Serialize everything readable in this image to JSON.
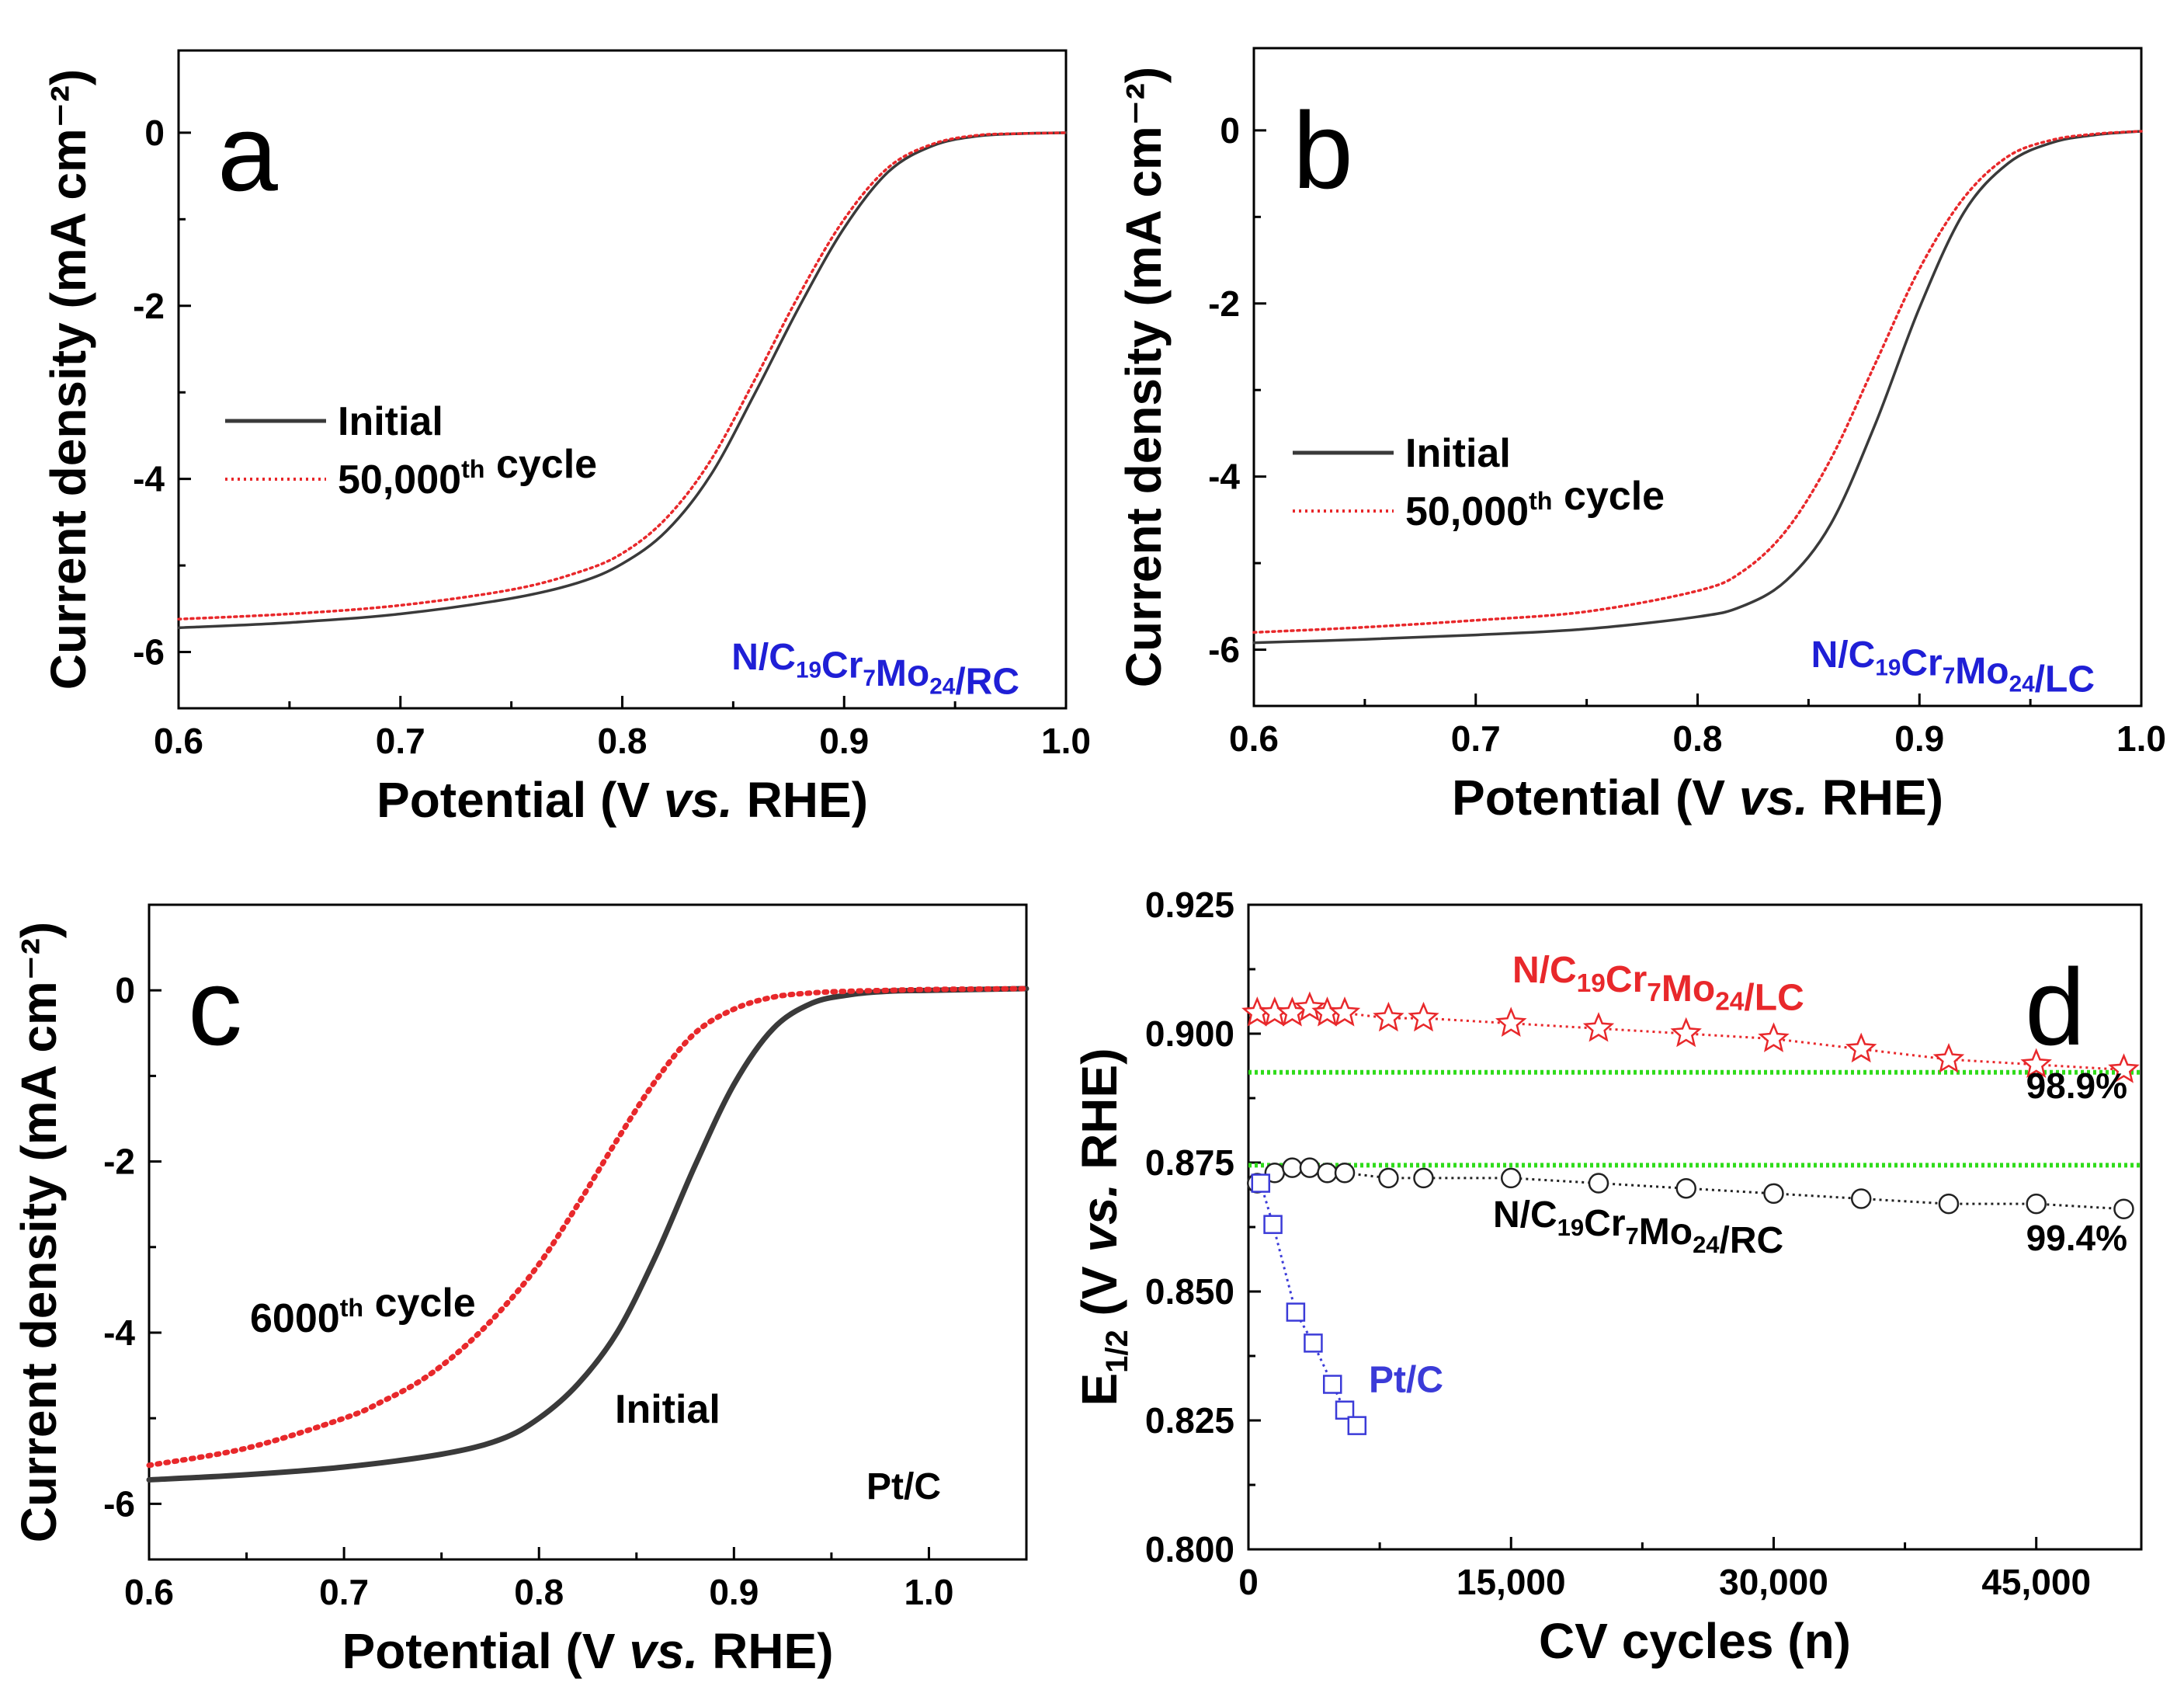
{
  "colors": {
    "initial": "#3a3a3a",
    "cycled": "#e8282b",
    "sample_label": "#1f1fd6",
    "lc_series": "#e8282b",
    "rc_series": "#222222",
    "ptc_series": "#3b3bd8",
    "reference": "#2fdc1a"
  },
  "chart_data": [
    {
      "panel": "a",
      "type": "line",
      "panel_letter": "a",
      "xlabel": "Potential (V vs. RHE)",
      "ylabel": "Current density (mA cm⁻²)",
      "xlim": [
        0.6,
        1.0
      ],
      "ylim": [
        -6.65,
        0.95
      ],
      "xticks": [
        0.6,
        0.7,
        0.8,
        0.9,
        1.0
      ],
      "xtick_labels": [
        "0.6",
        "0.7",
        "0.8",
        "0.9",
        "1.0"
      ],
      "yticks": [
        0,
        -2,
        -4,
        -6
      ],
      "ytick_labels": [
        "0",
        "-2",
        "-4",
        "-6"
      ],
      "sample_label": "N/C19Cr7Mo24/RC",
      "legend": [
        "Initial",
        "50,000th cycle"
      ],
      "series": [
        {
          "name": "Initial",
          "style": "solid",
          "x": [
            0.6,
            0.65,
            0.7,
            0.75,
            0.78,
            0.8,
            0.82,
            0.84,
            0.86,
            0.88,
            0.9,
            0.92,
            0.94,
            0.96,
            0.98,
            1.0
          ],
          "y": [
            -5.72,
            -5.66,
            -5.56,
            -5.38,
            -5.2,
            -4.98,
            -4.6,
            -3.95,
            -3.0,
            -2.0,
            -1.1,
            -0.45,
            -0.15,
            -0.04,
            -0.01,
            0.0
          ]
        },
        {
          "name": "50,000th cycle",
          "style": "dotted",
          "x": [
            0.6,
            0.65,
            0.7,
            0.75,
            0.78,
            0.8,
            0.82,
            0.84,
            0.86,
            0.88,
            0.9,
            0.92,
            0.94,
            0.96,
            0.98,
            1.0
          ],
          "y": [
            -5.62,
            -5.56,
            -5.46,
            -5.28,
            -5.08,
            -4.86,
            -4.45,
            -3.78,
            -2.84,
            -1.86,
            -1.0,
            -0.4,
            -0.13,
            -0.03,
            -0.01,
            0.0
          ]
        }
      ]
    },
    {
      "panel": "b",
      "type": "line",
      "panel_letter": "b",
      "xlabel": "Potential (V vs. RHE)",
      "ylabel": "Current density (mA cm⁻²)",
      "xlim": [
        0.6,
        1.0
      ],
      "ylim": [
        -6.65,
        0.95
      ],
      "xticks": [
        0.6,
        0.7,
        0.8,
        0.9,
        1.0
      ],
      "xtick_labels": [
        "0.6",
        "0.7",
        "0.8",
        "0.9",
        "1.0"
      ],
      "yticks": [
        0,
        -2,
        -4,
        -6
      ],
      "ytick_labels": [
        "0",
        "-2",
        "-4",
        "-6"
      ],
      "sample_label": "N/C19Cr7Mo24/LC",
      "legend": [
        "Initial",
        "50,000th cycle"
      ],
      "series": [
        {
          "name": "Initial",
          "style": "solid",
          "x": [
            0.6,
            0.65,
            0.7,
            0.75,
            0.8,
            0.82,
            0.84,
            0.86,
            0.88,
            0.9,
            0.92,
            0.94,
            0.96,
            0.98,
            1.0
          ],
          "y": [
            -5.92,
            -5.88,
            -5.83,
            -5.76,
            -5.62,
            -5.5,
            -5.2,
            -4.55,
            -3.4,
            -2.05,
            -0.95,
            -0.38,
            -0.14,
            -0.05,
            -0.01
          ]
        },
        {
          "name": "50,000th cycle",
          "style": "dotted",
          "x": [
            0.6,
            0.65,
            0.7,
            0.75,
            0.8,
            0.82,
            0.84,
            0.86,
            0.88,
            0.9,
            0.92,
            0.94,
            0.96,
            0.98,
            1.0
          ],
          "y": [
            -5.8,
            -5.74,
            -5.66,
            -5.56,
            -5.32,
            -5.1,
            -4.62,
            -3.8,
            -2.7,
            -1.6,
            -0.78,
            -0.3,
            -0.11,
            -0.04,
            -0.01
          ]
        }
      ]
    },
    {
      "panel": "c",
      "type": "line",
      "panel_letter": "c",
      "xlabel": "Potential (V vs. RHE)",
      "ylabel": "Current density (mA cm⁻²)",
      "xlim": [
        0.6,
        1.05
      ],
      "ylim": [
        -6.65,
        1.0
      ],
      "xticks": [
        0.6,
        0.7,
        0.8,
        0.9,
        1.0
      ],
      "xtick_labels": [
        "0.6",
        "0.7",
        "0.8",
        "0.9",
        "1.0"
      ],
      "yticks": [
        0,
        -2,
        -4,
        -6
      ],
      "ytick_labels": [
        "0",
        "-2",
        "-4",
        "-6"
      ],
      "sample_label": "Pt/C",
      "annotations": {
        "cycled": "6000th cycle",
        "initial": "Initial"
      },
      "series": [
        {
          "name": "Initial",
          "style": "solid",
          "x": [
            0.6,
            0.65,
            0.7,
            0.75,
            0.78,
            0.8,
            0.82,
            0.84,
            0.86,
            0.88,
            0.9,
            0.92,
            0.94,
            0.96,
            0.98,
            1.0,
            1.05
          ],
          "y": [
            -5.72,
            -5.66,
            -5.57,
            -5.42,
            -5.25,
            -5.0,
            -4.6,
            -4.0,
            -3.1,
            -2.05,
            -1.1,
            -0.45,
            -0.15,
            -0.05,
            -0.01,
            0.0,
            0.02
          ]
        },
        {
          "name": "6000th cycle",
          "style": "dotted",
          "x": [
            0.6,
            0.65,
            0.7,
            0.72,
            0.74,
            0.76,
            0.78,
            0.8,
            0.82,
            0.84,
            0.86,
            0.88,
            0.9,
            0.92,
            0.94,
            0.96,
            0.98,
            1.0,
            1.05
          ],
          "y": [
            -5.55,
            -5.35,
            -5.0,
            -4.8,
            -4.55,
            -4.2,
            -3.75,
            -3.2,
            -2.5,
            -1.75,
            -1.05,
            -0.5,
            -0.22,
            -0.08,
            -0.03,
            -0.01,
            0.0,
            0.01,
            0.02
          ]
        }
      ]
    },
    {
      "panel": "d",
      "type": "scatter",
      "panel_letter": "d",
      "xlabel": "CV cycles (n)",
      "ylabel": "E1/2 (V vs. RHE)",
      "xlim": [
        0,
        51000
      ],
      "ylim": [
        0.8,
        0.925
      ],
      "xticks": [
        0,
        15000,
        30000,
        45000
      ],
      "xtick_labels": [
        "0",
        "15,000",
        "30,000",
        "45,000"
      ],
      "yticks": [
        0.8,
        0.825,
        0.85,
        0.875,
        0.9,
        0.925
      ],
      "ytick_labels": [
        "0.800",
        "0.825",
        "0.850",
        "0.875",
        "0.900",
        "0.925"
      ],
      "reference_lines": [
        0.8925,
        0.8745
      ],
      "series": [
        {
          "name": "N/C19Cr7Mo24/LC",
          "marker": "star",
          "x": [
            500,
            1500,
            2500,
            3500,
            4500,
            5500,
            8000,
            10000,
            15000,
            20000,
            25000,
            30000,
            35000,
            40000,
            45000,
            50000
          ],
          "y": [
            0.904,
            0.904,
            0.904,
            0.905,
            0.904,
            0.904,
            0.903,
            0.903,
            0.902,
            0.901,
            0.9,
            0.899,
            0.897,
            0.895,
            0.894,
            0.893
          ],
          "retention": "98.9%"
        },
        {
          "name": "N/C19Cr7Mo24/RC",
          "marker": "circle",
          "x": [
            500,
            1500,
            2500,
            3500,
            4500,
            5500,
            8000,
            10000,
            15000,
            20000,
            25000,
            30000,
            35000,
            40000,
            45000,
            50000
          ],
          "y": [
            0.871,
            0.873,
            0.874,
            0.874,
            0.873,
            0.873,
            0.872,
            0.872,
            0.872,
            0.871,
            0.87,
            0.869,
            0.868,
            0.867,
            0.867,
            0.866
          ],
          "retention": "99.4%"
        },
        {
          "name": "Pt/C",
          "marker": "square",
          "x": [
            700,
            1400,
            2700,
            3700,
            4800,
            5500,
            6200
          ],
          "y": [
            0.871,
            0.863,
            0.846,
            0.84,
            0.832,
            0.827,
            0.824
          ]
        }
      ]
    }
  ]
}
